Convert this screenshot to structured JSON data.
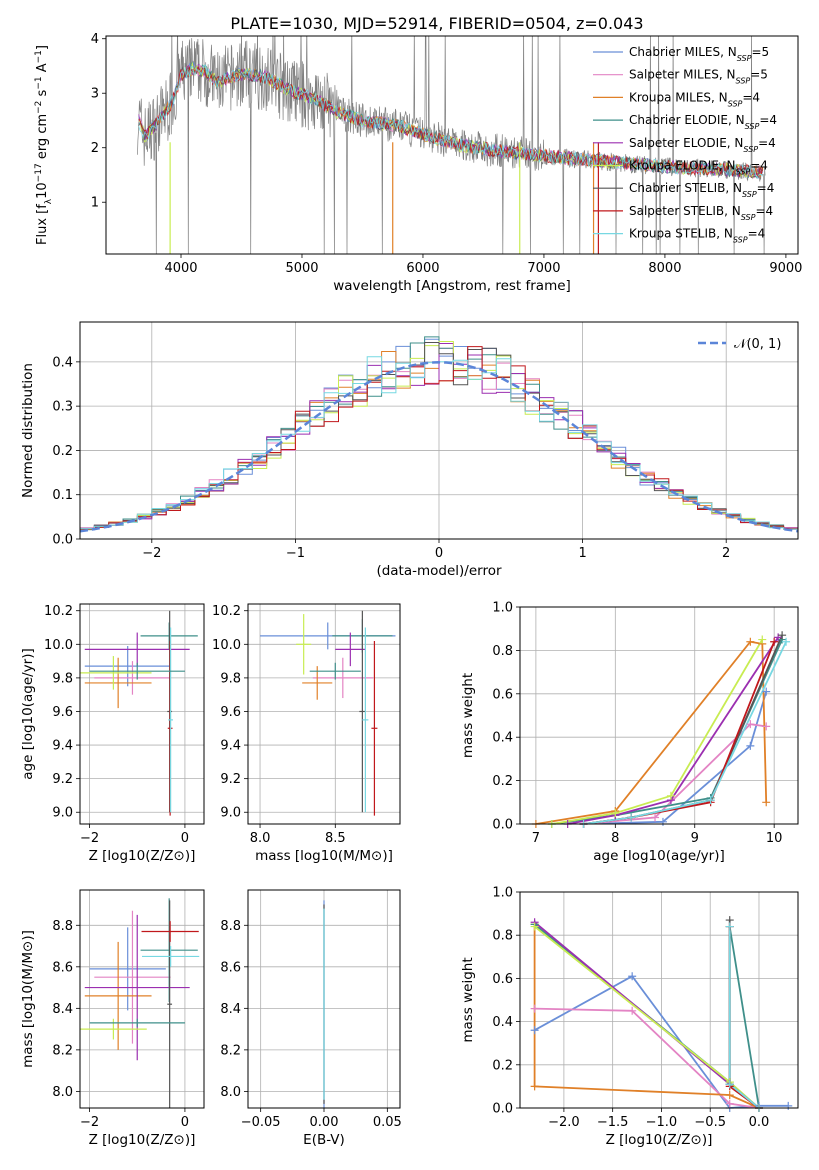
{
  "figure": {
    "title": "PLATE=1030, MJD=52914, FIBERID=0504, z=0.043"
  },
  "models": [
    {
      "label": "Chabrier MILES, N",
      "sub": "SSP",
      "tail": "=5",
      "color": "#6a8fd8"
    },
    {
      "label": "Salpeter MILES, N",
      "sub": "SSP",
      "tail": "=5",
      "color": "#e384c4"
    },
    {
      "label": "Kroupa MILES, N",
      "sub": "SSP",
      "tail": "=4",
      "color": "#e08028"
    },
    {
      "label": "Chabrier ELODIE, N",
      "sub": "SSP",
      "tail": "=4",
      "color": "#3f8f8a"
    },
    {
      "label": "Salpeter ELODIE, N",
      "sub": "SSP",
      "tail": "=4",
      "color": "#9b2fb0"
    },
    {
      "label": "Kroupa ELODIE, N",
      "sub": "SSP",
      "tail": "=4",
      "color": "#c8ec52"
    },
    {
      "label": "Chabrier STELIB, N",
      "sub": "SSP",
      "tail": "=4",
      "color": "#555555"
    },
    {
      "label": "Salpeter STELIB, N",
      "sub": "SSP",
      "tail": "=4",
      "color": "#c0181c"
    },
    {
      "label": "Kroupa STELIB, N",
      "sub": "SSP",
      "tail": "=4",
      "color": "#77d8e2"
    }
  ],
  "chart_data": [
    {
      "type": "line",
      "id": "spectrum",
      "xlabel": "wavelength [Angstrom, rest frame]",
      "ylabel": "Flux [f",
      "ylabel_parts": [
        "Flux [f",
        "λ",
        "10",
        "−17",
        " erg cm",
        "−2",
        " s",
        "−1",
        " A",
        "−1",
        "]"
      ],
      "xlim": [
        3380,
        9100
      ],
      "ylim": [
        0.05,
        4.05
      ],
      "xticks": [
        "4000",
        "5000",
        "6000",
        "7000",
        "8000",
        "9000"
      ],
      "yticks": [
        "1",
        "2",
        "3",
        "4"
      ],
      "observed_color": "#808080",
      "continuum": {
        "x": [
          3650,
          3700,
          3800,
          3900,
          3950,
          4000,
          4100,
          4200,
          4300,
          4500,
          4700,
          4900,
          5100,
          5300,
          5500,
          5800,
          6000,
          6300,
          6600,
          7000,
          7500,
          8000,
          8500,
          8800
        ],
        "y": [
          2.5,
          2.2,
          2.45,
          2.75,
          2.95,
          3.35,
          3.45,
          3.4,
          3.2,
          3.35,
          3.3,
          3.05,
          2.9,
          2.65,
          2.5,
          2.4,
          2.25,
          2.05,
          1.95,
          1.85,
          1.75,
          1.65,
          1.6,
          1.55
        ]
      }
    },
    {
      "type": "bar",
      "id": "residual-histogram",
      "xlabel": "(data-model)/error",
      "ylabel": "Normed distribution",
      "xlim": [
        -2.5,
        2.5
      ],
      "ylim": [
        0,
        0.49
      ],
      "xticks": [
        "−2",
        "−1",
        "0",
        "1",
        "2"
      ],
      "yticks": [
        "0.0",
        "0.1",
        "0.2",
        "0.3",
        "0.4"
      ],
      "bin_edges_range": [
        -2.5,
        2.5
      ],
      "bin_width": 0.1,
      "gaussian_label": "𝒩(0, 1)",
      "gaussian_color": "#5b85d8"
    },
    {
      "type": "scatter",
      "id": "age-vs-Z",
      "xlabel": "Z [log10(Z/Z⊙)]",
      "ylabel": "age  [log10(age/yr)]",
      "xlim": [
        -2.2,
        0.4
      ],
      "ylim": [
        8.93,
        10.24
      ],
      "xticks": [
        "−2",
        "0"
      ],
      "yticks": [
        "9.0",
        "9.2",
        "9.4",
        "9.6",
        "9.8",
        "10.0",
        "10.2"
      ],
      "points": [
        {
          "model": 0,
          "x": -1.2,
          "y": 9.87,
          "xerr": 0.9,
          "yerr": 0.12
        },
        {
          "model": 1,
          "x": -1.1,
          "y": 9.8,
          "xerr": 0.8,
          "yerr": 0.1
        },
        {
          "model": 2,
          "x": -1.4,
          "y": 9.77,
          "xerr": 0.7,
          "yerr": 0.15
        },
        {
          "model": 3,
          "x": -0.33,
          "y": 10.05,
          "xerr": 0.6,
          "yerr": 0.08
        },
        {
          "model": 4,
          "x": -1.0,
          "y": 9.97,
          "xerr": 1.1,
          "yerr": 0.1
        },
        {
          "model": 5,
          "x": -1.5,
          "y": 9.83,
          "xerr": 0.8,
          "yerr": 0.1
        },
        {
          "model": 6,
          "x": -0.32,
          "y": 9.6,
          "xerr": 0.05,
          "yerr": 0.6
        },
        {
          "model": 7,
          "x": -0.31,
          "y": 9.5,
          "xerr": 0.05,
          "yerr": 0.52
        },
        {
          "model": 8,
          "x": -0.3,
          "y": 9.55,
          "xerr": 0.05,
          "yerr": 0.55
        },
        {
          "model": 3,
          "x": -1.0,
          "y": 9.84,
          "xerr": 1.0,
          "yerr": 0.05
        }
      ]
    },
    {
      "type": "scatter",
      "id": "age-vs-mass",
      "xlabel": "mass [log10(M/M⊙)]",
      "ylabel": "",
      "xlim": [
        7.92,
        8.93
      ],
      "ylim": [
        8.93,
        10.24
      ],
      "xticks": [
        "8.0",
        "8.5"
      ],
      "yticks": [
        "9.0",
        "9.2",
        "9.4",
        "9.6",
        "9.8",
        "10.0",
        "10.2"
      ],
      "points": [
        {
          "model": 0,
          "x": 8.45,
          "y": 10.05,
          "xerr": 0.45,
          "yerr": 0.08
        },
        {
          "model": 1,
          "x": 8.55,
          "y": 9.8,
          "xerr": 0.2,
          "yerr": 0.12
        },
        {
          "model": 2,
          "x": 8.38,
          "y": 9.77,
          "xerr": 0.1,
          "yerr": 0.1
        },
        {
          "model": 3,
          "x": 8.68,
          "y": 10.05,
          "xerr": 0.2,
          "yerr": 0.1
        },
        {
          "model": 4,
          "x": 8.6,
          "y": 9.97,
          "xerr": 0.1,
          "yerr": 0.1
        },
        {
          "model": 5,
          "x": 8.29,
          "y": 10.0,
          "xerr": 0.05,
          "yerr": 0.18
        },
        {
          "model": 6,
          "x": 8.68,
          "y": 9.6,
          "xerr": 0.02,
          "yerr": 0.6
        },
        {
          "model": 7,
          "x": 8.76,
          "y": 9.5,
          "xerr": 0.02,
          "yerr": 0.52
        },
        {
          "model": 8,
          "x": 8.7,
          "y": 9.55,
          "xerr": 0.02,
          "yerr": 0.55
        },
        {
          "model": 3,
          "x": 8.5,
          "y": 9.84,
          "xerr": 0.17,
          "yerr": 0.05
        }
      ]
    },
    {
      "type": "line",
      "id": "mass-weight-vs-age",
      "xlabel": "age  [log10(age/yr)]",
      "ylabel": "mass weight",
      "xlim": [
        6.8,
        10.3
      ],
      "ylim": [
        0,
        1
      ],
      "xticks": [
        "7",
        "8",
        "9",
        "10"
      ],
      "yticks": [
        "0.0",
        "0.2",
        "0.4",
        "0.6",
        "0.8",
        "1.0"
      ],
      "series": [
        {
          "model": 0,
          "x": [
            7.6,
            8.6,
            9.7,
            9.9
          ],
          "y": [
            0.0,
            0.01,
            0.36,
            0.61
          ]
        },
        {
          "model": 1,
          "x": [
            7.6,
            8.5,
            9.7,
            9.9
          ],
          "y": [
            0.0,
            0.03,
            0.46,
            0.45
          ]
        },
        {
          "model": 2,
          "x": [
            7.0,
            8.0,
            9.7,
            9.85,
            9.9
          ],
          "y": [
            0.0,
            0.06,
            0.84,
            0.83,
            0.1
          ]
        },
        {
          "model": 3,
          "x": [
            7.2,
            8.0,
            9.2,
            10.1
          ],
          "y": [
            0.0,
            0.04,
            0.12,
            0.85
          ]
        },
        {
          "model": 4,
          "x": [
            7.4,
            8.0,
            8.7,
            10.05
          ],
          "y": [
            0.0,
            0.04,
            0.11,
            0.86
          ]
        },
        {
          "model": 5,
          "x": [
            7.2,
            8.0,
            8.7,
            9.85
          ],
          "y": [
            0.0,
            0.05,
            0.13,
            0.85
          ]
        },
        {
          "model": 6,
          "x": [
            7.6,
            8.2,
            9.2,
            10.1
          ],
          "y": [
            0.0,
            0.03,
            0.11,
            0.87
          ]
        },
        {
          "model": 7,
          "x": [
            7.6,
            8.2,
            9.2,
            10.0
          ],
          "y": [
            0.0,
            0.03,
            0.1,
            0.84
          ]
        },
        {
          "model": 8,
          "x": [
            7.6,
            8.2,
            9.2,
            10.15
          ],
          "y": [
            0.0,
            0.03,
            0.11,
            0.84
          ]
        }
      ]
    },
    {
      "type": "scatter",
      "id": "mass-vs-Z",
      "xlabel": "Z [log10(Z/Z⊙)]",
      "ylabel": "mass [log10(M/M⊙)]",
      "xlim": [
        -2.2,
        0.4
      ],
      "ylim": [
        7.92,
        8.97
      ],
      "xticks": [
        "−2",
        "0"
      ],
      "yticks": [
        "8.0",
        "8.2",
        "8.4",
        "8.6",
        "8.8"
      ],
      "points": [
        {
          "model": 0,
          "x": -1.2,
          "y": 8.59,
          "xerr": 0.8,
          "yerr": 0.2
        },
        {
          "model": 1,
          "x": -1.1,
          "y": 8.55,
          "xerr": 0.8,
          "yerr": 0.32
        },
        {
          "model": 2,
          "x": -1.4,
          "y": 8.46,
          "xerr": 0.7,
          "yerr": 0.26
        },
        {
          "model": 3,
          "x": -0.33,
          "y": 8.68,
          "xerr": 0.6,
          "yerr": 0.25
        },
        {
          "model": 4,
          "x": -1.0,
          "y": 8.5,
          "xerr": 1.1,
          "yerr": 0.35
        },
        {
          "model": 5,
          "x": -1.5,
          "y": 8.3,
          "xerr": 0.7,
          "yerr": 0.05
        },
        {
          "model": 6,
          "x": -0.32,
          "y": 8.42,
          "xerr": 0.05,
          "yerr": 0.5
        },
        {
          "model": 7,
          "x": -0.31,
          "y": 8.77,
          "xerr": 0.6,
          "yerr": 0.05
        },
        {
          "model": 8,
          "x": -0.3,
          "y": 8.65,
          "xerr": 0.6,
          "yerr": 0.05
        },
        {
          "model": 3,
          "x": -1.0,
          "y": 8.33,
          "xerr": 1.0,
          "yerr": 0.02
        }
      ]
    },
    {
      "type": "scatter",
      "id": "mass-vs-ebv",
      "xlabel": "E(B-V)",
      "ylabel": "",
      "xlim": [
        -0.06,
        0.06
      ],
      "ylim": [
        7.92,
        8.97
      ],
      "xticks": [
        "−0.05",
        "0.00",
        "0.05"
      ],
      "yticks": [
        "8.0",
        "8.2",
        "8.4",
        "8.6",
        "8.8"
      ],
      "points": [
        {
          "model": 0,
          "x": 0.0,
          "y": 8.42,
          "xerr": 0.0,
          "yerr": 0.5
        },
        {
          "model": 6,
          "x": 0.0,
          "y": 8.42,
          "xerr": 0.0,
          "yerr": 0.48
        },
        {
          "model": 8,
          "x": 0.0,
          "y": 8.42,
          "xerr": 0.0,
          "yerr": 0.46
        }
      ]
    },
    {
      "type": "line",
      "id": "mass-weight-vs-Z",
      "xlabel": "Z [log10(Z/Z⊙)]",
      "ylabel": "mass weight",
      "xlim": [
        -2.45,
        0.4
      ],
      "ylim": [
        0,
        1
      ],
      "xticks": [
        "−2.0",
        "−1.5",
        "−1.0",
        "−0.5",
        "0.0"
      ],
      "yticks": [
        "0.0",
        "0.2",
        "0.4",
        "0.6",
        "0.8",
        "1.0"
      ],
      "series": [
        {
          "model": 0,
          "x": [
            -2.3,
            -1.3,
            -0.3,
            0.0,
            0.3
          ],
          "y": [
            0.36,
            0.61,
            0.0,
            0.01,
            0.01
          ]
        },
        {
          "model": 1,
          "x": [
            -2.3,
            -1.3,
            -0.3,
            0.0
          ],
          "y": [
            0.46,
            0.45,
            0.02,
            0.0
          ]
        },
        {
          "model": 2,
          "x": [
            -2.3,
            -2.3,
            -0.3,
            0.0
          ],
          "y": [
            0.85,
            0.1,
            0.06,
            0.0
          ]
        },
        {
          "model": 3,
          "x": [
            -2.3,
            -0.3,
            -0.3,
            0.0
          ],
          "y": [
            0.85,
            0.12,
            0.84,
            0.0
          ]
        },
        {
          "model": 4,
          "x": [
            -2.3,
            -0.3,
            0.0
          ],
          "y": [
            0.86,
            0.11,
            0.0
          ]
        },
        {
          "model": 5,
          "x": [
            -2.3,
            -0.3,
            0.0
          ],
          "y": [
            0.84,
            0.12,
            0.0
          ]
        },
        {
          "model": 6,
          "x": [
            -0.3,
            -0.3,
            0.0
          ],
          "y": [
            0.87,
            0.11,
            0.0
          ]
        },
        {
          "model": 7,
          "x": [
            -0.3,
            -0.3,
            0.0
          ],
          "y": [
            0.84,
            0.1,
            0.0
          ]
        },
        {
          "model": 8,
          "x": [
            -0.3,
            -0.3,
            0.0
          ],
          "y": [
            0.84,
            0.11,
            0.0
          ]
        }
      ]
    }
  ]
}
